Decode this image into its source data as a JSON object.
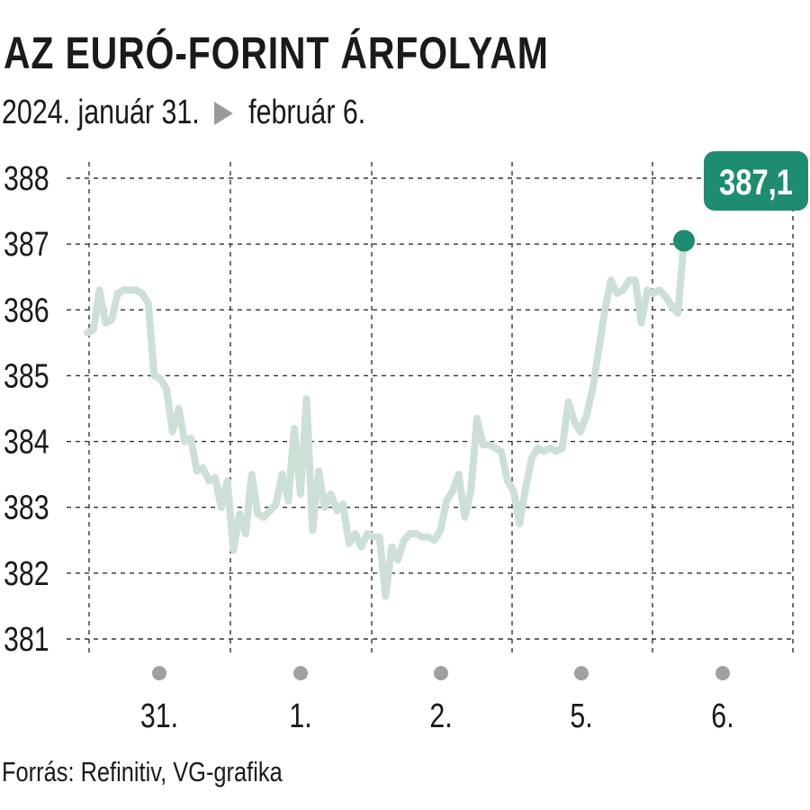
{
  "header": {
    "title": "AZ EURÓ-FORINT ÁRFOLYAM",
    "date_from": "2024. január 31.",
    "date_to": "február 6."
  },
  "footer": {
    "source": "Forrás: Refinitiv, VG-grafika"
  },
  "colors": {
    "line": "#cde0d6",
    "accent": "#1e8c70",
    "grid": "#333333",
    "day_dot": "#a0a0a0",
    "text": "#1a1a1a"
  },
  "chart_data": {
    "type": "line",
    "title": "AZ EURÓ-FORINT ÁRFOLYAM",
    "ylim": [
      381,
      388
    ],
    "y_ticks": [
      388,
      387,
      386,
      385,
      384,
      383,
      382,
      381
    ],
    "x_tick_labels": [
      "31.",
      "1.",
      "2.",
      "5.",
      "6."
    ],
    "grid": true,
    "last_value_label": "387,1",
    "series": [
      {
        "values": [
          385.65,
          385.7,
          386.3,
          385.8,
          385.85,
          386.25,
          386.3,
          386.3,
          386.3,
          386.25,
          386.1,
          385.0,
          384.95,
          384.8,
          384.15,
          384.5,
          384.0,
          384.05,
          383.55,
          383.6,
          383.4,
          383.45,
          383.0,
          383.4,
          382.35,
          382.9,
          382.6,
          383.5,
          382.9,
          382.85,
          382.95,
          383.05,
          383.5,
          383.1,
          384.2,
          383.2,
          384.65,
          382.65,
          383.55,
          383.0,
          383.2,
          382.95,
          383.05,
          382.45,
          382.6,
          382.4,
          382.6,
          382.55,
          382.55,
          381.65,
          382.4,
          382.2,
          382.5,
          382.6,
          382.6,
          382.55,
          382.55,
          382.5,
          382.65,
          383.1,
          383.25,
          383.5,
          382.85,
          383.25,
          384.35,
          383.95,
          383.95,
          383.9,
          383.85,
          383.4,
          383.25,
          382.75,
          383.3,
          383.75,
          383.9,
          383.85,
          383.9,
          383.85,
          383.9,
          384.6,
          384.3,
          384.15,
          384.4,
          384.8,
          385.4,
          386.0,
          386.45,
          386.25,
          386.3,
          386.45,
          386.45,
          385.8,
          386.3,
          386.25,
          386.3,
          386.2,
          386.05,
          385.95,
          387.05
        ]
      }
    ]
  }
}
